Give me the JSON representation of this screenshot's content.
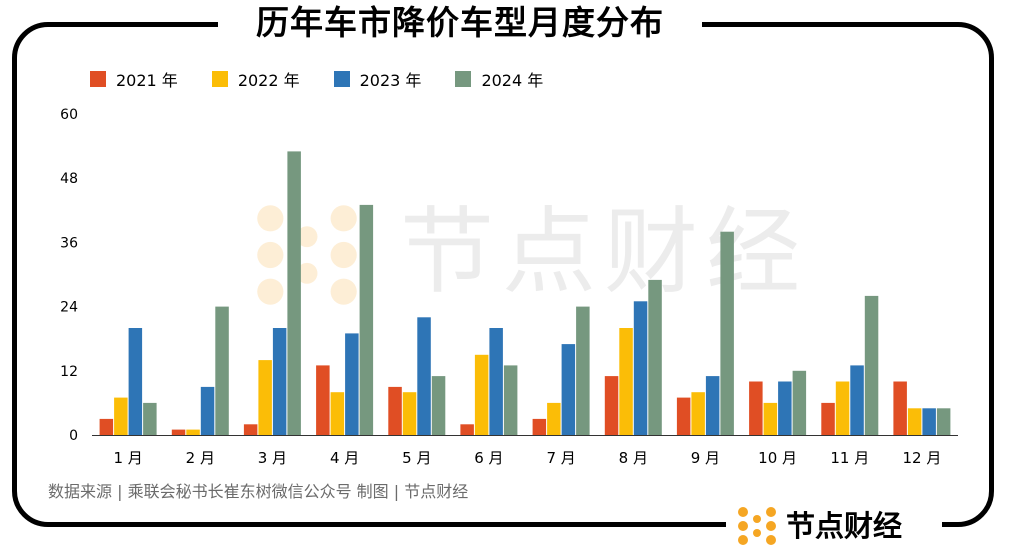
{
  "title": "历年车市降价车型月度分布",
  "source": "数据来源 | 乘联会秘书长崔东树微信公众号   制图 | 节点财经",
  "brand": "节点财经",
  "watermark": "节点财经",
  "colors": {
    "2021": "#e04e24",
    "2022": "#fbbd07",
    "2023": "#2e75b6",
    "2024": "#76987f",
    "brand_orange": "#f5a623"
  },
  "chart_data": {
    "type": "bar",
    "title": "历年车市降价车型月度分布",
    "xlabel": "",
    "ylabel": "",
    "categories": [
      "1 月",
      "2 月",
      "3 月",
      "4 月",
      "5 月",
      "6 月",
      "7 月",
      "8 月",
      "9 月",
      "10 月",
      "11 月",
      "12 月"
    ],
    "yticks": [
      "0",
      "12",
      "24",
      "36",
      "48",
      "60"
    ],
    "ylim": [
      0,
      60
    ],
    "grid": false,
    "legend_position": "top-left",
    "series": [
      {
        "name": "2021 年",
        "color": "#e04e24",
        "values": [
          3,
          1,
          2,
          13,
          9,
          2,
          3,
          11,
          7,
          10,
          6,
          10
        ]
      },
      {
        "name": "2022 年",
        "color": "#fbbd07",
        "values": [
          7,
          1,
          14,
          8,
          8,
          15,
          6,
          20,
          8,
          6,
          10,
          5
        ]
      },
      {
        "name": "2023 年",
        "color": "#2e75b6",
        "values": [
          20,
          9,
          20,
          19,
          22,
          20,
          17,
          25,
          11,
          10,
          13,
          5
        ]
      },
      {
        "name": "2024 年",
        "color": "#76987f",
        "values": [
          6,
          24,
          53,
          43,
          11,
          13,
          24,
          29,
          38,
          12,
          26,
          5
        ]
      }
    ]
  }
}
